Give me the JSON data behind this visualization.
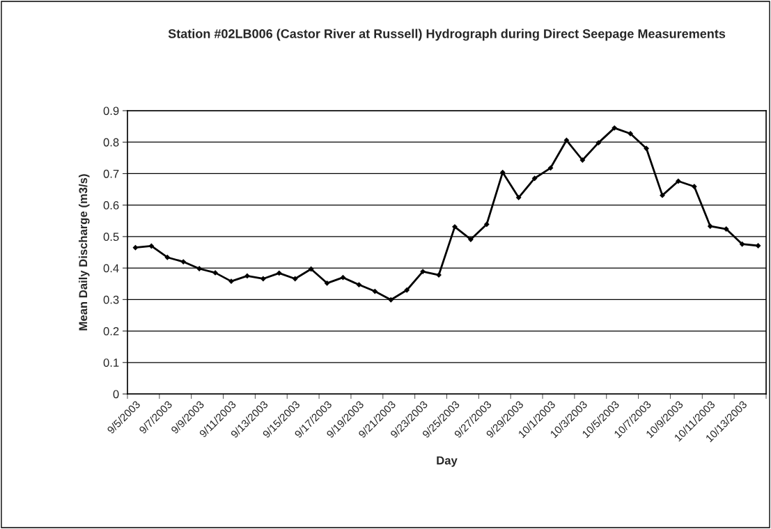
{
  "chart_data": {
    "type": "line",
    "title": "Station #02LB006 (Castor River at Russell) Hydrograph during Direct Seepage Measurements",
    "xlabel": "Day",
    "ylabel": "Mean Daily Discharge (m3/s)",
    "categories": [
      "9/5/2003",
      null,
      "9/7/2003",
      null,
      "9/9/2003",
      null,
      "9/11/2003",
      null,
      "9/13/2003",
      null,
      "9/15/2003",
      null,
      "9/17/2003",
      null,
      "9/19/2003",
      null,
      "9/21/2003",
      null,
      "9/23/2003",
      null,
      "9/25/2003",
      null,
      "9/27/2003",
      null,
      "9/29/2003",
      null,
      "10/1/2003",
      null,
      "10/3/2003",
      null,
      "10/5/2003",
      null,
      "10/7/2003",
      null,
      "10/9/2003",
      null,
      "10/11/2003",
      null,
      "10/13/2003",
      null
    ],
    "series": [
      {
        "color": "#000000",
        "values": [
          0.465,
          0.47,
          0.434,
          0.42,
          0.398,
          0.385,
          0.358,
          0.375,
          0.366,
          0.384,
          0.366,
          0.397,
          0.352,
          0.37,
          0.347,
          0.326,
          0.299,
          0.33,
          0.389,
          0.378,
          0.531,
          0.491,
          0.539,
          0.704,
          0.624,
          0.685,
          0.718,
          0.806,
          0.743,
          0.798,
          0.845,
          0.827,
          0.78,
          0.631,
          0.676,
          0.659,
          0.533,
          0.524,
          0.476,
          0.471
        ]
      }
    ],
    "ylim": [
      0,
      0.9
    ],
    "yticks": [
      {
        "value": 0,
        "label": "0"
      },
      0.1,
      0.2,
      0.3,
      0.4,
      0.5,
      0.6,
      0.7,
      0.8,
      0.9
    ],
    "grid": "y",
    "marker": "diamond",
    "line_style": "solid"
  }
}
